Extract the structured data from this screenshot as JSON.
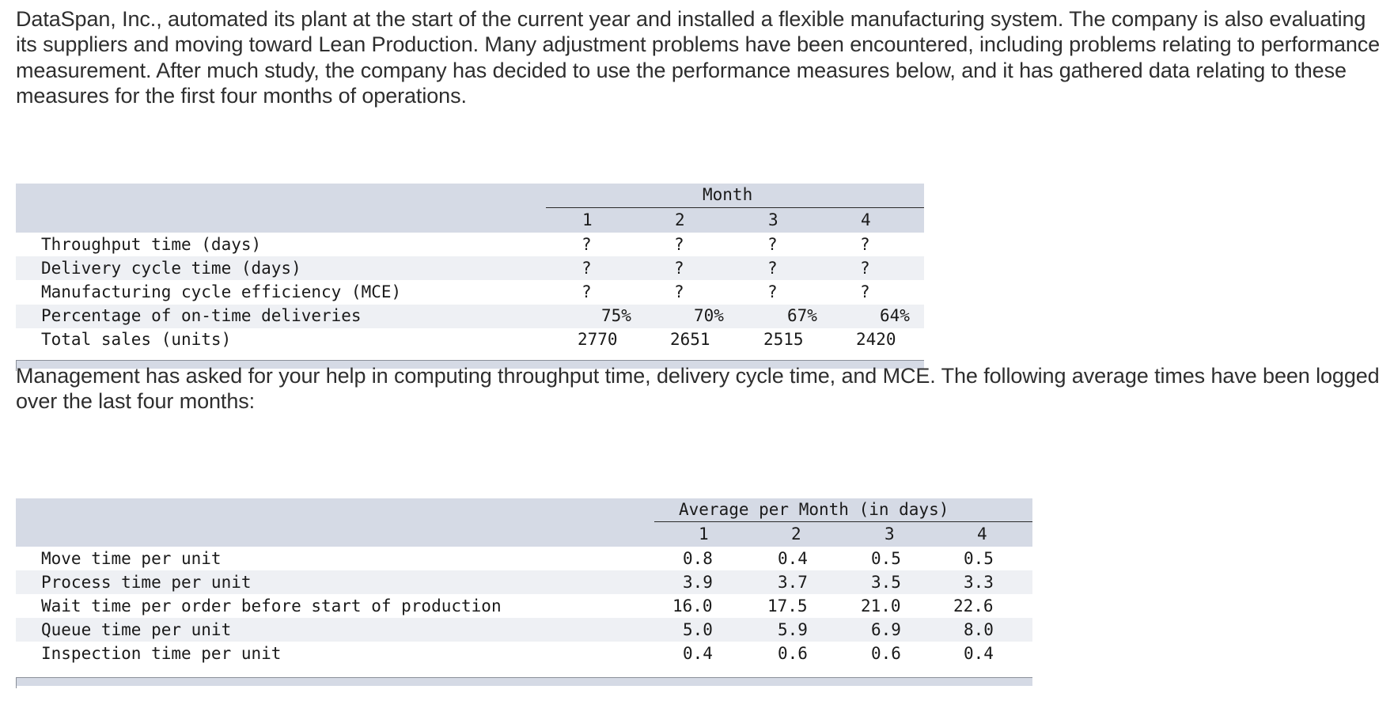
{
  "intro_text": "DataSpan, Inc., automated its plant at the start of the current year and installed a flexible manufacturing system. The company is also evaluating its suppliers and moving toward Lean Production. Many adjustment problems have been encountered, including problems relating to performance measurement. After much study, the company has decided to use the performance measures below, and it has gathered data relating to these measures for the first four months of operations.",
  "table1": {
    "group_header": "Month",
    "columns": [
      "1",
      "2",
      "3",
      "4"
    ],
    "rows": [
      {
        "label": "Throughput time (days)",
        "values": [
          "?",
          "?",
          "?",
          "?"
        ]
      },
      {
        "label": "Delivery cycle time (days)",
        "values": [
          "?",
          "?",
          "?",
          "?"
        ]
      },
      {
        "label": "Manufacturing cycle efficiency (MCE)",
        "values": [
          "?",
          "?",
          "?",
          "?"
        ]
      },
      {
        "label": "Percentage of on-time deliveries",
        "values": [
          "75%",
          "70%",
          "67%",
          "64%"
        ]
      },
      {
        "label": "Total sales (units)",
        "values": [
          "2770",
          "2651",
          "2515",
          "2420"
        ]
      }
    ]
  },
  "management_text": "Management has asked for your help in computing throughput time, delivery cycle time, and MCE. The following average times have been logged over the last four months:",
  "table2": {
    "group_header": "Average per Month (in days)",
    "columns": [
      "1",
      "2",
      "3",
      "4"
    ],
    "rows": [
      {
        "label": "Move time per unit",
        "values": [
          "0.8",
          "0.4",
          "0.5",
          "0.5"
        ]
      },
      {
        "label": "Process time per unit",
        "values": [
          "3.9",
          "3.7",
          "3.5",
          "3.3"
        ]
      },
      {
        "label": "Wait time per order before start of production",
        "values": [
          "16.0",
          "17.5",
          "21.0",
          "22.6"
        ]
      },
      {
        "label": "Queue time per unit",
        "values": [
          "5.0",
          "5.9",
          "6.9",
          "8.0"
        ]
      },
      {
        "label": "Inspection time per unit",
        "values": [
          "0.4",
          "0.6",
          "0.6",
          "0.4"
        ]
      }
    ]
  }
}
